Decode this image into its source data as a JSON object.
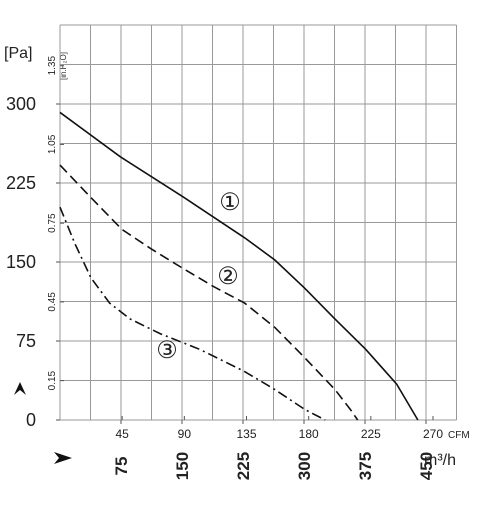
{
  "chart_data": {
    "type": "line",
    "y_unit": "[Pa]",
    "x_unit": "m³/h",
    "x2_unit": "CFM",
    "y2_unit": "[in.H₂O]",
    "xlim": [
      0,
      487.5
    ],
    "xticks": [
      75,
      150,
      225,
      300,
      375,
      450
    ],
    "x2lim": [
      0,
      287
    ],
    "x2ticks": [
      45,
      90,
      135,
      180,
      225,
      270
    ],
    "ylim": [
      0,
      375
    ],
    "yticks": [
      0,
      75,
      150,
      225,
      300
    ],
    "y2lim": [
      0,
      1.505
    ],
    "y2ticks": [
      0.15,
      0.45,
      0.75,
      1.05,
      1.35
    ],
    "grid": true,
    "xgrid": [
      0,
      37.5,
      75,
      112.5,
      150,
      187.5,
      225,
      262.5,
      300,
      337.5,
      375,
      412.5,
      450,
      487.5
    ],
    "ygrid": [
      0,
      37.5,
      75,
      112.5,
      150,
      187.5,
      225,
      262.5,
      300,
      337.5,
      375
    ],
    "series": [
      {
        "name": "①",
        "color": "#111111",
        "dash": "none",
        "x": [
          0,
          74,
          151,
          227,
          264,
          301,
          338,
          376,
          414,
          440
        ],
        "values": [
          292,
          250,
          212,
          173,
          152,
          125,
          96,
          67,
          34,
          0
        ]
      },
      {
        "name": "②",
        "color": "#111111",
        "dash": "10,5",
        "x": [
          0,
          37,
          76,
          113,
          151,
          188,
          227,
          264,
          301,
          338,
          357,
          366
        ],
        "values": [
          242,
          212,
          181,
          162,
          144,
          127,
          111,
          88,
          59,
          29,
          10,
          0
        ]
      },
      {
        "name": "③",
        "color": "#111111",
        "dash": "10,4,2,4",
        "x": [
          0,
          18,
          38,
          61,
          86,
          123,
          172,
          227,
          264,
          301,
          326
        ],
        "values": [
          202,
          168,
          135,
          111,
          96,
          82,
          67,
          46,
          29,
          10,
          0
        ]
      }
    ]
  }
}
